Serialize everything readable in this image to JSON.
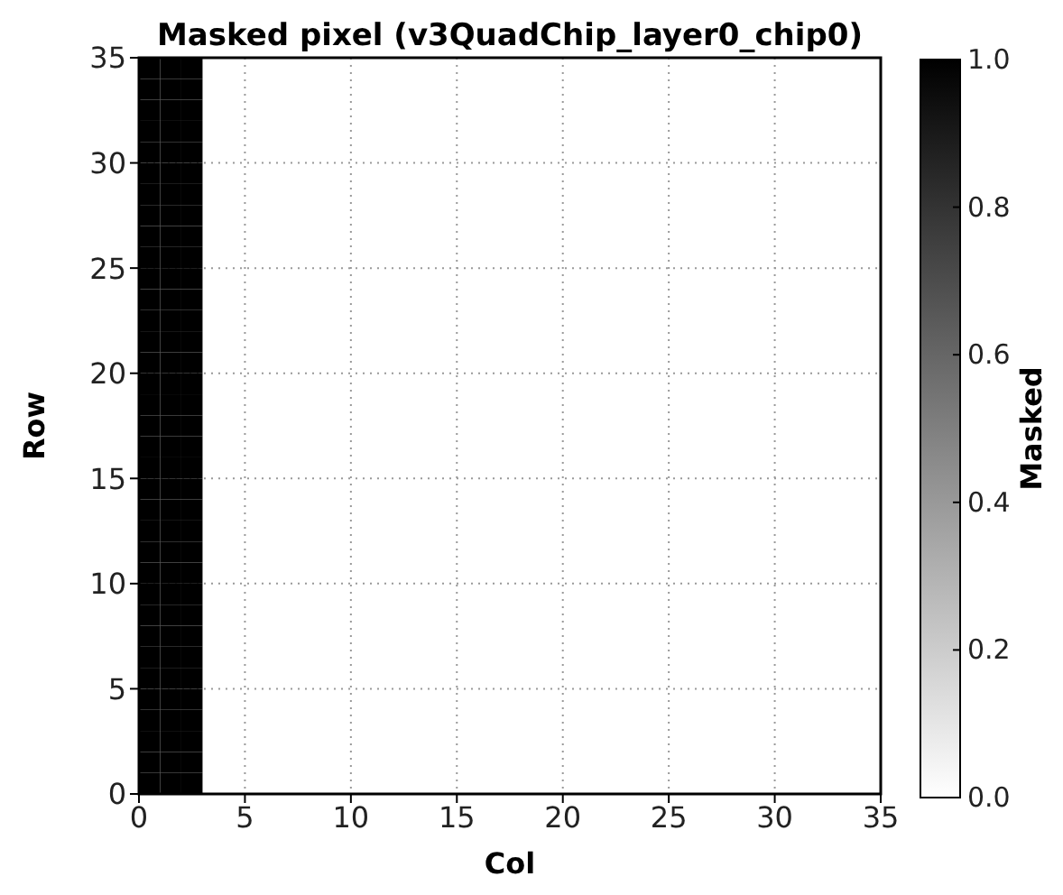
{
  "chart_data": {
    "type": "heatmap",
    "title": "Masked pixel (v3QuadChip_layer0_chip0)",
    "xlabel": "Col",
    "ylabel": "Row",
    "clabel": "Masked",
    "xlim": [
      0,
      35
    ],
    "xticks": [
      0,
      5,
      10,
      15,
      20,
      25,
      30,
      35
    ],
    "ylim": [
      0,
      35
    ],
    "yticks": [
      0,
      5,
      10,
      15,
      20,
      25,
      30,
      35
    ],
    "clim": [
      0,
      1
    ],
    "cticks": [
      {
        "value": 0,
        "label": "0.0"
      },
      0.2,
      0.4,
      0.6,
      0.8,
      {
        "value": 1,
        "label": "1.0"
      }
    ],
    "grid": true,
    "cells": [
      [
        1,
        1,
        1,
        0,
        0,
        0,
        0,
        0,
        0,
        0,
        0,
        0,
        0,
        0,
        0,
        0,
        0,
        0,
        0,
        0,
        0,
        0,
        0,
        0,
        0,
        0,
        0,
        0,
        0,
        0,
        0,
        0,
        0,
        0,
        0
      ],
      [
        1,
        1,
        1,
        0,
        0,
        0,
        0,
        0,
        0,
        0,
        0,
        0,
        0,
        0,
        0,
        0,
        0,
        0,
        0,
        0,
        0,
        0,
        0,
        0,
        0,
        0,
        0,
        0,
        0,
        0,
        0,
        0,
        0,
        0,
        0
      ],
      [
        1,
        1,
        1,
        0,
        0,
        0,
        0,
        0,
        0,
        0,
        0,
        0,
        0,
        0,
        0,
        0,
        0,
        0,
        0,
        0,
        0,
        0,
        0,
        0,
        0,
        0,
        0,
        0,
        0,
        0,
        0,
        0,
        0,
        0,
        0
      ],
      [
        1,
        1,
        1,
        0,
        0,
        0,
        0,
        0,
        0,
        0,
        0,
        0,
        0,
        0,
        0,
        0,
        0,
        0,
        0,
        0,
        0,
        0,
        0,
        0,
        0,
        0,
        0,
        0,
        0,
        0,
        0,
        0,
        0,
        0,
        0
      ],
      [
        1,
        1,
        1,
        0,
        0,
        0,
        0,
        0,
        0,
        0,
        0,
        0,
        0,
        0,
        0,
        0,
        0,
        0,
        0,
        0,
        0,
        0,
        0,
        0,
        0,
        0,
        0,
        0,
        0,
        0,
        0,
        0,
        0,
        0,
        0
      ],
      [
        1,
        1,
        1,
        0,
        0,
        0,
        0,
        0,
        0,
        0,
        0,
        0,
        0,
        0,
        0,
        0,
        0,
        0,
        0,
        0,
        0,
        0,
        0,
        0,
        0,
        0,
        0,
        0,
        0,
        0,
        0,
        0,
        0,
        0,
        0
      ],
      [
        1,
        1,
        1,
        0,
        0,
        0,
        0,
        0,
        0,
        0,
        0,
        0,
        0,
        0,
        0,
        0,
        0,
        0,
        0,
        0,
        0,
        0,
        0,
        0,
        0,
        0,
        0,
        0,
        0,
        0,
        0,
        0,
        0,
        0,
        0
      ],
      [
        1,
        1,
        1,
        0,
        0,
        0,
        0,
        0,
        0,
        0,
        0,
        0,
        0,
        0,
        0,
        0,
        0,
        0,
        0,
        0,
        0,
        0,
        0,
        0,
        0,
        0,
        0,
        0,
        0,
        0,
        0,
        0,
        0,
        0,
        0
      ],
      [
        1,
        1,
        1,
        0,
        0,
        0,
        0,
        0,
        0,
        0,
        0,
        0,
        0,
        0,
        0,
        0,
        0,
        0,
        0,
        0,
        0,
        0,
        0,
        0,
        0,
        0,
        0,
        0,
        0,
        0,
        0,
        0,
        0,
        0,
        0
      ],
      [
        1,
        1,
        1,
        0,
        0,
        0,
        0,
        0,
        0,
        0,
        0,
        0,
        0,
        0,
        0,
        0,
        0,
        0,
        0,
        0,
        0,
        0,
        0,
        0,
        0,
        0,
        0,
        0,
        0,
        0,
        0,
        0,
        0,
        0,
        0
      ],
      [
        1,
        1,
        1,
        0,
        0,
        0,
        0,
        0,
        0,
        0,
        0,
        0,
        0,
        0,
        0,
        0,
        0,
        0,
        0,
        0,
        0,
        0,
        0,
        0,
        0,
        0,
        0,
        0,
        0,
        0,
        0,
        0,
        0,
        0,
        0
      ],
      [
        1,
        1,
        1,
        0,
        0,
        0,
        0,
        0,
        0,
        0,
        0,
        0,
        0,
        0,
        0,
        0,
        0,
        0,
        0,
        0,
        0,
        0,
        0,
        0,
        0,
        0,
        0,
        0,
        0,
        0,
        0,
        0,
        0,
        0,
        0
      ],
      [
        1,
        1,
        1,
        0,
        0,
        0,
        0,
        0,
        0,
        0,
        0,
        0,
        0,
        0,
        0,
        0,
        0,
        0,
        0,
        0,
        0,
        0,
        0,
        0,
        0,
        0,
        0,
        0,
        0,
        0,
        0,
        0,
        0,
        0,
        0
      ],
      [
        1,
        1,
        1,
        0,
        0,
        0,
        0,
        0,
        0,
        0,
        0,
        0,
        0,
        0,
        0,
        0,
        0,
        0,
        0,
        0,
        0,
        0,
        0,
        0,
        0,
        0,
        0,
        0,
        0,
        0,
        0,
        0,
        0,
        0,
        0
      ],
      [
        1,
        1,
        1,
        0,
        0,
        0,
        0,
        0,
        0,
        0,
        0,
        0,
        0,
        0,
        0,
        0,
        0,
        0,
        0,
        0,
        0,
        0,
        0,
        0,
        0,
        0,
        0,
        0,
        0,
        0,
        0,
        0,
        0,
        0,
        0
      ],
      [
        1,
        1,
        1,
        0,
        0,
        0,
        0,
        0,
        0,
        0,
        0,
        0,
        0,
        0,
        0,
        0,
        0,
        0,
        0,
        0,
        0,
        0,
        0,
        0,
        0,
        0,
        0,
        0,
        0,
        0,
        0,
        0,
        0,
        0,
        0
      ],
      [
        1,
        1,
        1,
        0,
        0,
        0,
        0,
        0,
        0,
        0,
        0,
        0,
        0,
        0,
        0,
        0,
        0,
        0,
        0,
        0,
        0,
        0,
        0,
        0,
        0,
        0,
        0,
        0,
        0,
        0,
        0,
        0,
        0,
        0,
        0
      ],
      [
        1,
        1,
        1,
        0,
        0,
        0,
        0,
        0,
        0,
        0,
        0,
        0,
        0,
        0,
        0,
        0,
        0,
        0,
        0,
        0,
        0,
        0,
        0,
        0,
        0,
        0,
        0,
        0,
        0,
        0,
        0,
        0,
        0,
        0,
        0
      ],
      [
        1,
        1,
        1,
        0,
        0,
        0,
        0,
        0,
        0,
        0,
        0,
        0,
        0,
        0,
        0,
        0,
        0,
        0,
        0,
        0,
        0,
        0,
        0,
        0,
        0,
        0,
        0,
        0,
        0,
        0,
        0,
        0,
        0,
        0,
        0
      ],
      [
        1,
        1,
        1,
        0,
        0,
        0,
        0,
        0,
        0,
        0,
        0,
        0,
        0,
        0,
        0,
        0,
        0,
        0,
        0,
        0,
        0,
        0,
        0,
        0,
        0,
        0,
        0,
        0,
        0,
        0,
        0,
        0,
        0,
        0,
        0
      ],
      [
        1,
        1,
        1,
        0,
        0,
        0,
        0,
        0,
        0,
        0,
        0,
        0,
        0,
        0,
        0,
        0,
        0,
        0,
        0,
        0,
        0,
        0,
        0,
        0,
        0,
        0,
        0,
        0,
        0,
        0,
        0,
        0,
        0,
        0,
        0
      ],
      [
        1,
        1,
        1,
        0,
        0,
        0,
        0,
        0,
        0,
        0,
        0,
        0,
        0,
        0,
        0,
        0,
        0,
        0,
        0,
        0,
        0,
        0,
        0,
        0,
        0,
        0,
        0,
        0,
        0,
        0,
        0,
        0,
        0,
        0,
        0
      ],
      [
        1,
        1,
        1,
        0,
        0,
        0,
        0,
        0,
        0,
        0,
        0,
        0,
        0,
        0,
        0,
        0,
        0,
        0,
        0,
        0,
        0,
        0,
        0,
        0,
        0,
        0,
        0,
        0,
        0,
        0,
        0,
        0,
        0,
        0,
        0
      ],
      [
        1,
        1,
        1,
        0,
        0,
        0,
        0,
        0,
        0,
        0,
        0,
        0,
        0,
        0,
        0,
        0,
        0,
        0,
        0,
        0,
        0,
        0,
        0,
        0,
        0,
        0,
        0,
        0,
        0,
        0,
        0,
        0,
        0,
        0,
        0
      ],
      [
        1,
        1,
        1,
        0,
        0,
        0,
        0,
        0,
        0,
        0,
        0,
        0,
        0,
        0,
        0,
        0,
        0,
        0,
        0,
        0,
        0,
        0,
        0,
        0,
        0,
        0,
        0,
        0,
        0,
        0,
        0,
        0,
        0,
        0,
        0
      ],
      [
        1,
        1,
        1,
        0,
        0,
        0,
        0,
        0,
        0,
        0,
        0,
        0,
        0,
        0,
        0,
        0,
        0,
        0,
        0,
        0,
        0,
        0,
        0,
        0,
        0,
        0,
        0,
        0,
        0,
        0,
        0,
        0,
        0,
        0,
        0
      ],
      [
        1,
        1,
        1,
        0,
        0,
        0,
        0,
        0,
        0,
        0,
        0,
        0,
        0,
        0,
        0,
        0,
        0,
        0,
        0,
        0,
        0,
        0,
        0,
        0,
        0,
        0,
        0,
        0,
        0,
        0,
        0,
        0,
        0,
        0,
        0
      ],
      [
        1,
        1,
        1,
        0,
        0,
        0,
        0,
        0,
        0,
        0,
        0,
        0,
        0,
        0,
        0,
        0,
        0,
        0,
        0,
        0,
        0,
        0,
        0,
        0,
        0,
        0,
        0,
        0,
        0,
        0,
        0,
        0,
        0,
        0,
        0
      ],
      [
        1,
        1,
        1,
        0,
        0,
        0,
        0,
        0,
        0,
        0,
        0,
        0,
        0,
        0,
        0,
        0,
        0,
        0,
        0,
        0,
        0,
        0,
        0,
        0,
        0,
        0,
        0,
        0,
        0,
        0,
        0,
        0,
        0,
        0,
        0
      ],
      [
        1,
        1,
        1,
        0,
        0,
        0,
        0,
        0,
        0,
        0,
        0,
        0,
        0,
        0,
        0,
        0,
        0,
        0,
        0,
        0,
        0,
        0,
        0,
        0,
        0,
        0,
        0,
        0,
        0,
        0,
        0,
        0,
        0,
        0,
        0
      ],
      [
        1,
        1,
        1,
        0,
        0,
        0,
        0,
        0,
        0,
        0,
        0,
        0,
        0,
        0,
        0,
        0,
        0,
        0,
        0,
        0,
        0,
        0,
        0,
        0,
        0,
        0,
        0,
        0,
        0,
        0,
        0,
        0,
        0,
        0,
        0
      ],
      [
        1,
        1,
        1,
        0,
        0,
        0,
        0,
        0,
        0,
        0,
        0,
        0,
        0,
        0,
        0,
        0,
        0,
        0,
        0,
        0,
        0,
        0,
        0,
        0,
        0,
        0,
        0,
        0,
        0,
        0,
        0,
        0,
        0,
        0,
        0
      ],
      [
        1,
        1,
        1,
        0,
        0,
        0,
        0,
        0,
        0,
        0,
        0,
        0,
        0,
        0,
        0,
        0,
        0,
        0,
        0,
        0,
        0,
        0,
        0,
        0,
        0,
        0,
        0,
        0,
        0,
        0,
        0,
        0,
        0,
        0,
        0
      ],
      [
        1,
        1,
        1,
        0,
        0,
        0,
        0,
        0,
        0,
        0,
        0,
        0,
        0,
        0,
        0,
        0,
        0,
        0,
        0,
        0,
        0,
        0,
        0,
        0,
        0,
        0,
        0,
        0,
        0,
        0,
        0,
        0,
        0,
        0,
        0
      ],
      [
        1,
        1,
        1,
        0,
        0,
        0,
        0,
        0,
        0,
        0,
        0,
        0,
        0,
        0,
        0,
        0,
        0,
        0,
        0,
        0,
        0,
        0,
        0,
        0,
        0,
        0,
        0,
        0,
        0,
        0,
        0,
        0,
        0,
        0,
        0
      ]
    ]
  }
}
